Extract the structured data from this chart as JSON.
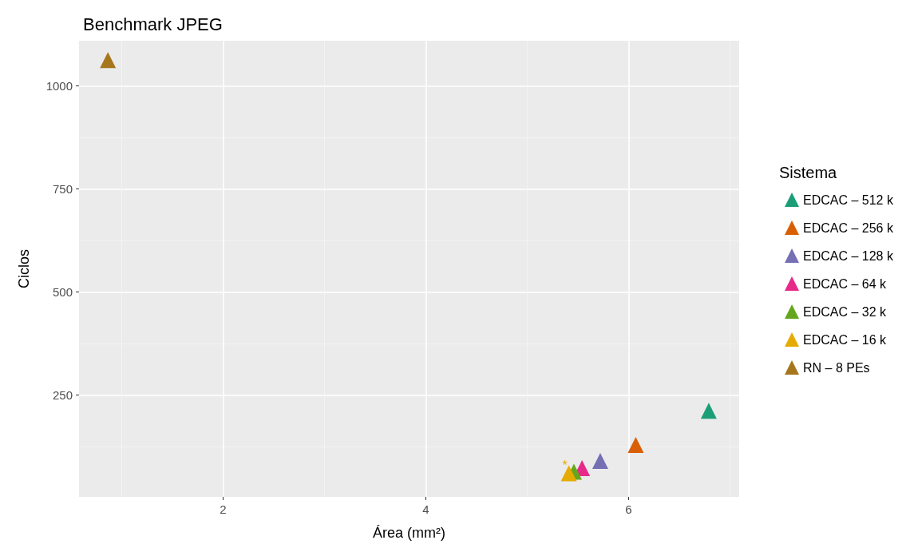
{
  "chart_data": {
    "type": "scatter",
    "title": "Benchmark JPEG",
    "xlabel": "Área (mm²)",
    "ylabel": "Ciclos",
    "legend_title": "Sistema",
    "xlim": [
      0.58,
      7.09
    ],
    "ylim": [
      3,
      1110
    ],
    "xticks": [
      2,
      4,
      6
    ],
    "yticks": [
      250,
      500,
      750,
      1000
    ],
    "grid": true,
    "legend": "right",
    "marker": "triangle",
    "series": [
      {
        "name": "EDCAC – 512 k",
        "color": "#1b9e77",
        "x": [
          6.79
        ],
        "values": [
          212
        ]
      },
      {
        "name": "EDCAC – 256 k",
        "color": "#d95f02",
        "x": [
          6.07
        ],
        "values": [
          129
        ]
      },
      {
        "name": "EDCAC – 128 k",
        "color": "#7570b3",
        "x": [
          5.72
        ],
        "values": [
          90
        ]
      },
      {
        "name": "EDCAC – 64 k",
        "color": "#e7298a",
        "x": [
          5.54
        ],
        "values": [
          73
        ]
      },
      {
        "name": "EDCAC – 32 k",
        "color": "#66a61e",
        "x": [
          5.46
        ],
        "values": [
          64
        ]
      },
      {
        "name": "EDCAC – 16 k",
        "color": "#e6ab02",
        "x": [
          5.41
        ],
        "values": [
          60
        ]
      },
      {
        "name": "RN – 8 PEs",
        "color": "#a6761d",
        "x": [
          0.865
        ],
        "values": [
          1063
        ]
      }
    ],
    "annotations": [
      {
        "text": "*",
        "x": 5.37,
        "y": 80
      }
    ]
  }
}
